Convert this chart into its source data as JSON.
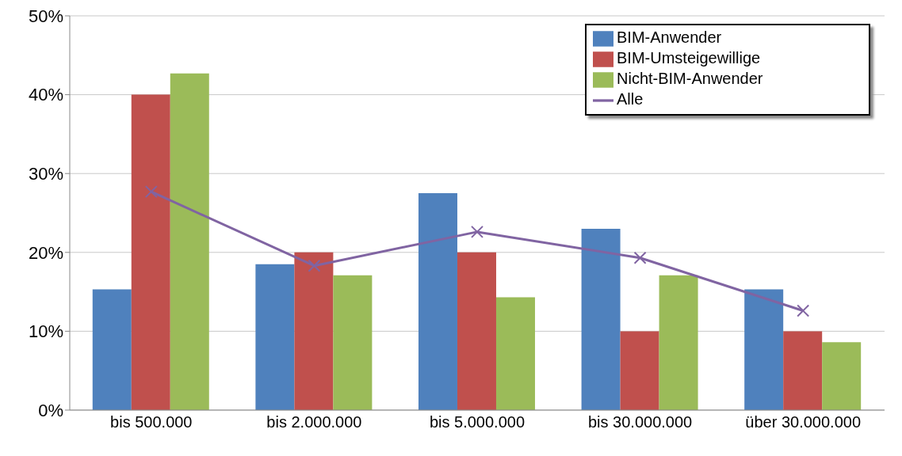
{
  "chart_data": {
    "type": "bar",
    "categories": [
      "bis 500.000",
      "bis 2.000.000",
      "bis 5.000.000",
      "bis 30.000.000",
      "über 30.000.000"
    ],
    "series": [
      {
        "name": "BIM-Anwender",
        "color": "#4f81bd",
        "values": [
          15.3,
          18.5,
          27.5,
          23.0,
          15.3
        ]
      },
      {
        "name": "BIM-Umsteigewillige",
        "color": "#c0504d",
        "values": [
          40.0,
          20.0,
          20.0,
          10.0,
          10.0
        ]
      },
      {
        "name": "Nicht-BIM-Anwender",
        "color": "#9bbb59",
        "values": [
          42.7,
          17.1,
          14.3,
          17.1,
          8.6
        ]
      },
      {
        "name": "Alle",
        "type": "line",
        "color": "#8064a2",
        "values": [
          27.7,
          18.3,
          22.6,
          19.3,
          12.6
        ]
      }
    ],
    "ylim": [
      0,
      50
    ],
    "yticks": [
      {
        "value": 0,
        "label": "0%"
      },
      {
        "value": 10,
        "label": "10%"
      },
      {
        "value": 20,
        "label": "20%"
      },
      {
        "value": 30,
        "label": "30%"
      },
      {
        "value": 40,
        "label": "40%"
      },
      {
        "value": 50,
        "label": "50%"
      }
    ],
    "grid": "y",
    "legend": "top right",
    "marker": "cross",
    "line_style": "solid"
  }
}
